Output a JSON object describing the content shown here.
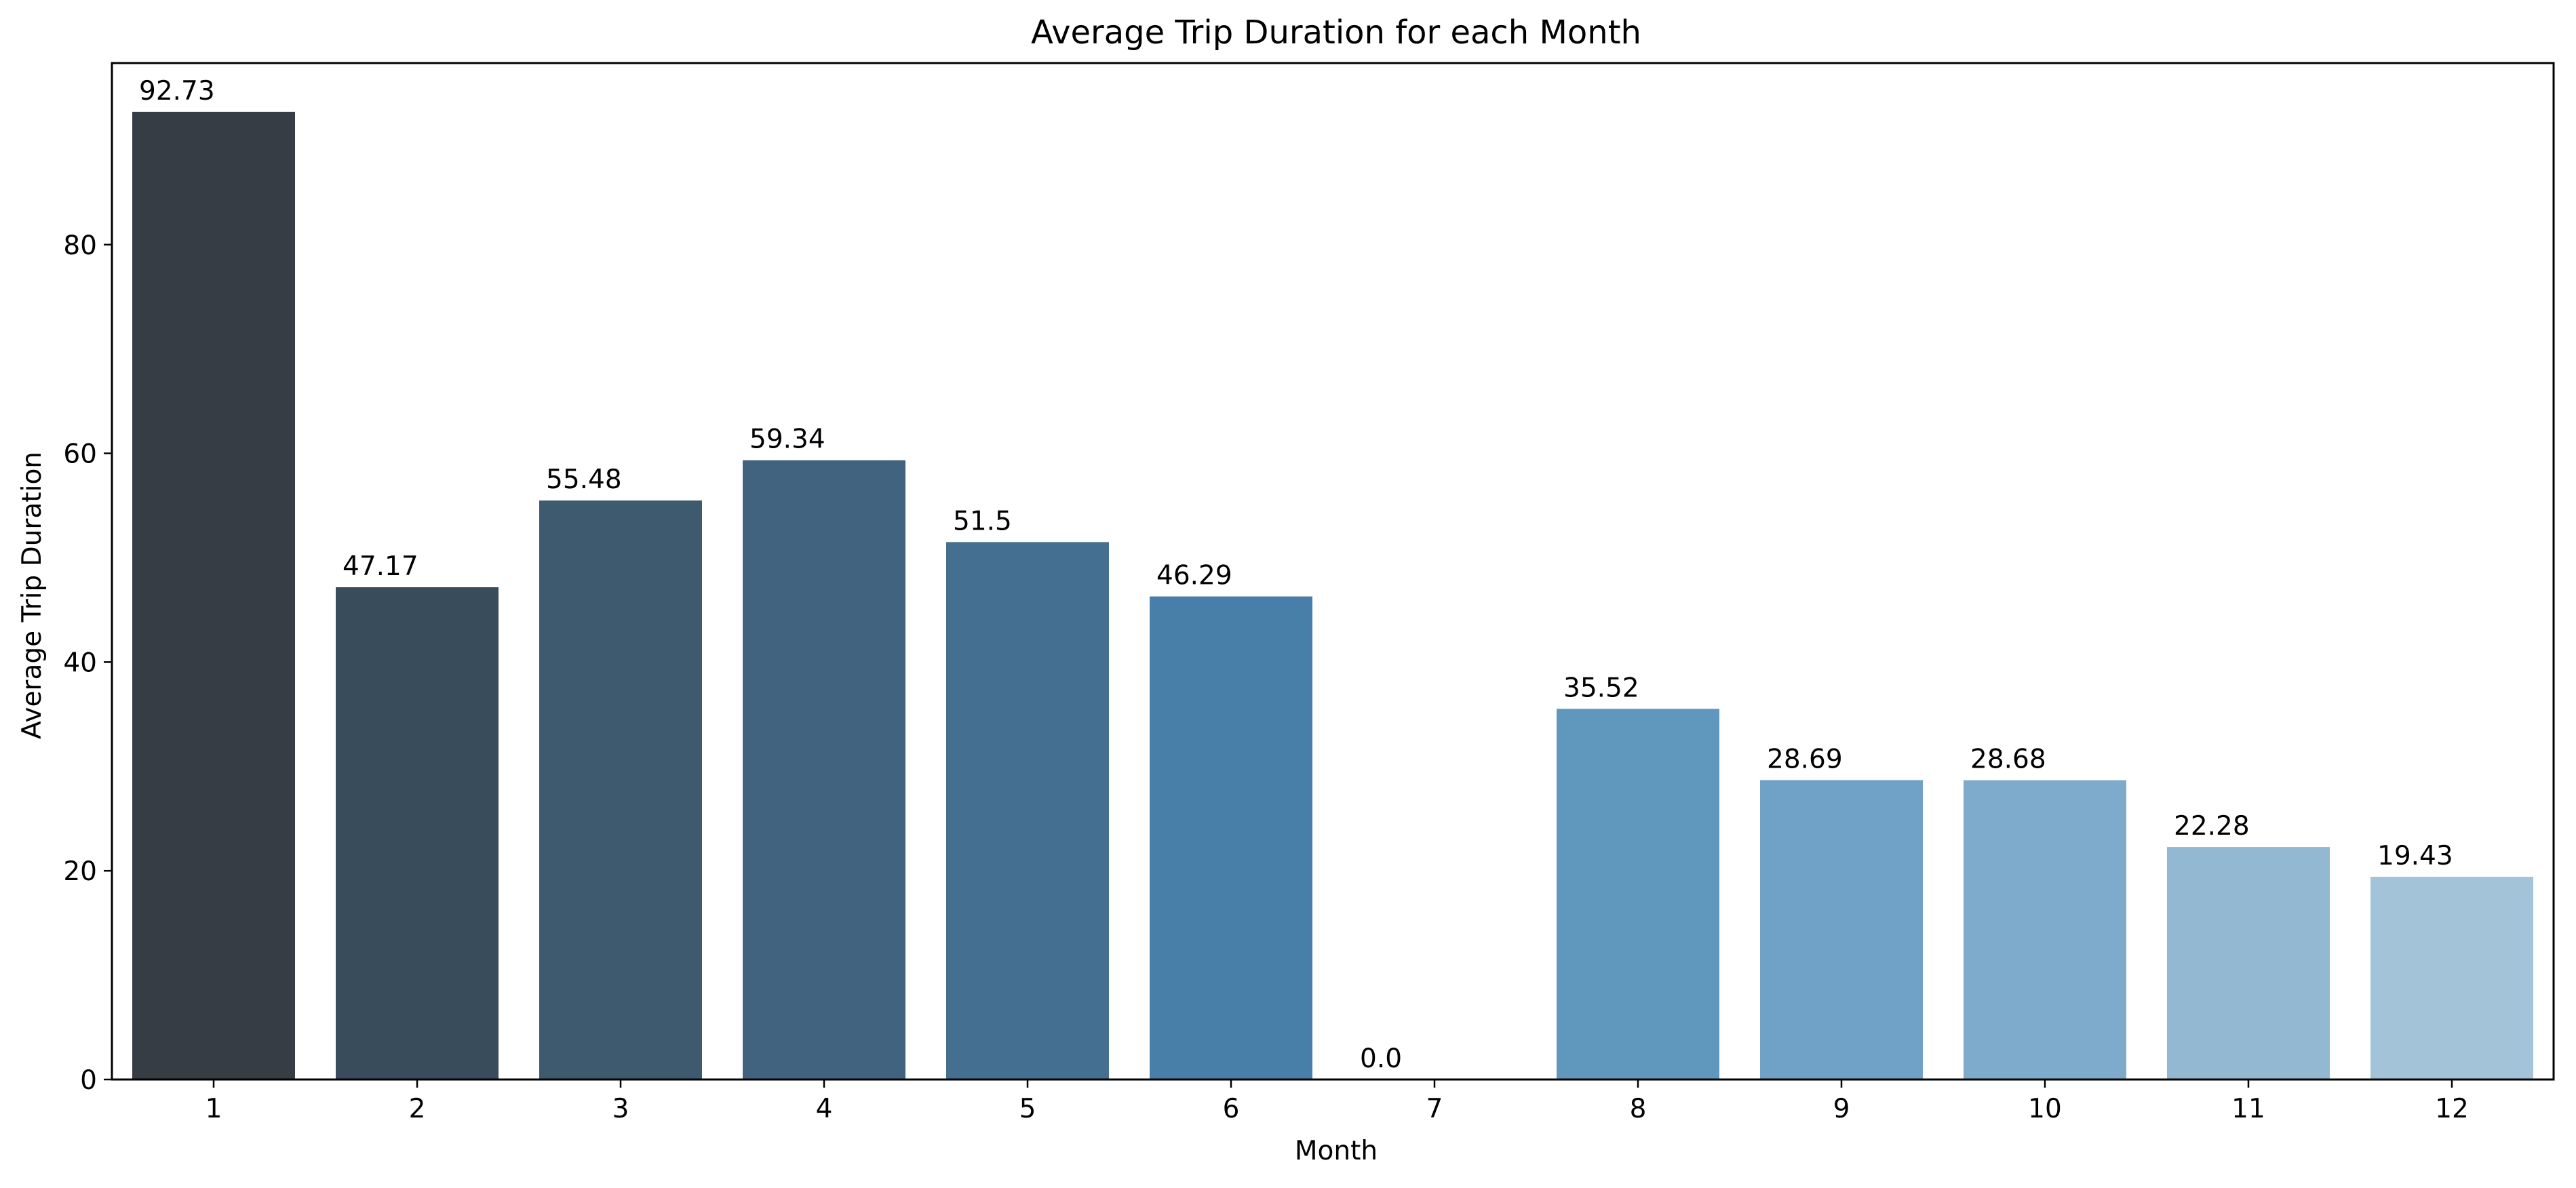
{
  "chart_data": {
    "type": "bar",
    "title": "Average Trip Duration for each Month",
    "xlabel": "Month",
    "ylabel": "Average Trip Duration",
    "categories": [
      "1",
      "2",
      "3",
      "4",
      "5",
      "6",
      "7",
      "8",
      "9",
      "10",
      "11",
      "12"
    ],
    "values": [
      92.73,
      47.17,
      55.48,
      59.34,
      51.5,
      46.29,
      0.0,
      35.52,
      28.69,
      28.68,
      22.28,
      19.43
    ],
    "data_labels": [
      "92.73",
      "47.17",
      "55.48",
      "59.34",
      "51.5",
      "46.29",
      "0.0",
      "35.52",
      "28.69",
      "28.68",
      "22.28",
      "19.43"
    ],
    "colors": [
      "#363d44",
      "#384c5b",
      "#3d5a6e",
      "#41637f",
      "#456f91",
      "#477fa9",
      "#5286b2",
      "#6097bd",
      "#6fa2c6",
      "#7eabcb",
      "#92b8d2",
      "#a3c4d8"
    ],
    "ylim": [
      0,
      97.4
    ],
    "yticks": [
      0,
      20,
      40,
      60,
      80
    ],
    "grid": false,
    "legend": "none"
  }
}
